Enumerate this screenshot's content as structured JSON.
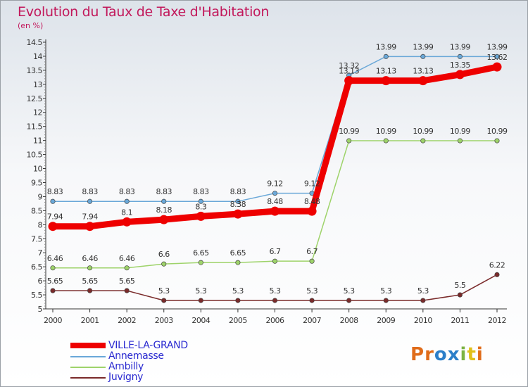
{
  "header": {
    "title": "Evolution du Taux de Taxe d'Habitation",
    "unit": "(en %)"
  },
  "brand": {
    "letters": [
      "P",
      "r",
      "o",
      "x",
      "i",
      "t",
      "i"
    ],
    "colors": [
      "#e06c1a",
      "#e06c1a",
      "#2c7fc9",
      "#2c7fc9",
      "#7cb342",
      "#e0c01a",
      "#e06c1a"
    ]
  },
  "chart_data": {
    "type": "line",
    "x": [
      "2000",
      "2001",
      "2002",
      "2003",
      "2004",
      "2005",
      "2006",
      "2007",
      "2008",
      "2009",
      "2010",
      "2011",
      "2012"
    ],
    "ylim": [
      5,
      14.5
    ],
    "yticks": [
      "5",
      "5.5",
      "6",
      "6.5",
      "7",
      "7.5",
      "8",
      "8.5",
      "9",
      "9.5",
      "10",
      "10.5",
      "11",
      "11.5",
      "12",
      "12.5",
      "13",
      "13.5",
      "14",
      "14.5"
    ],
    "grid": false,
    "legend_position": "bottom-left",
    "series": [
      {
        "name": "VILLE-LA-GRAND",
        "color": "#ee0000",
        "values": [
          7.94,
          7.94,
          8.1,
          8.18,
          8.3,
          8.38,
          8.48,
          8.48,
          13.13,
          13.13,
          13.13,
          13.35,
          13.62
        ],
        "labels": [
          "7.94",
          "7.94",
          "8.1",
          "8.18",
          "8.3",
          "8.38",
          "8.48",
          "8.48",
          "13.13",
          "13.13",
          "13.13",
          "13.35",
          "13.62"
        ]
      },
      {
        "name": "Annemasse",
        "color": "#6aa8d8",
        "values": [
          8.83,
          8.83,
          8.83,
          8.83,
          8.83,
          8.83,
          9.12,
          9.12,
          13.32,
          13.99,
          13.99,
          13.99,
          13.99
        ],
        "labels": [
          "8.83",
          "8.83",
          "8.83",
          "8.83",
          "8.83",
          "8.83",
          "9.12",
          "9.12",
          "13.32",
          "13.99",
          "13.99",
          "13.99",
          "13.99"
        ]
      },
      {
        "name": "Ambilly",
        "color": "#9ed36a",
        "values": [
          6.46,
          6.46,
          6.46,
          6.6,
          6.65,
          6.65,
          6.7,
          6.7,
          10.99,
          10.99,
          10.99,
          10.99,
          10.99
        ],
        "labels": [
          "6.46",
          "6.46",
          "6.46",
          "6.6",
          "6.65",
          "6.65",
          "6.7",
          "6.7",
          "10.99",
          "10.99",
          "10.99",
          "10.99",
          "10.99"
        ]
      },
      {
        "name": "Juvigny",
        "color": "#7a2a2a",
        "values": [
          5.65,
          5.65,
          5.65,
          5.3,
          5.3,
          5.3,
          5.3,
          5.3,
          5.3,
          5.3,
          5.3,
          5.5,
          6.22
        ],
        "labels": [
          "5.65",
          "5.65",
          "5.65",
          "5.3",
          "5.3",
          "5.3",
          "5.3",
          "5.3",
          "5.3",
          "5.3",
          "5.3",
          "5.5",
          "6.22"
        ]
      }
    ]
  }
}
